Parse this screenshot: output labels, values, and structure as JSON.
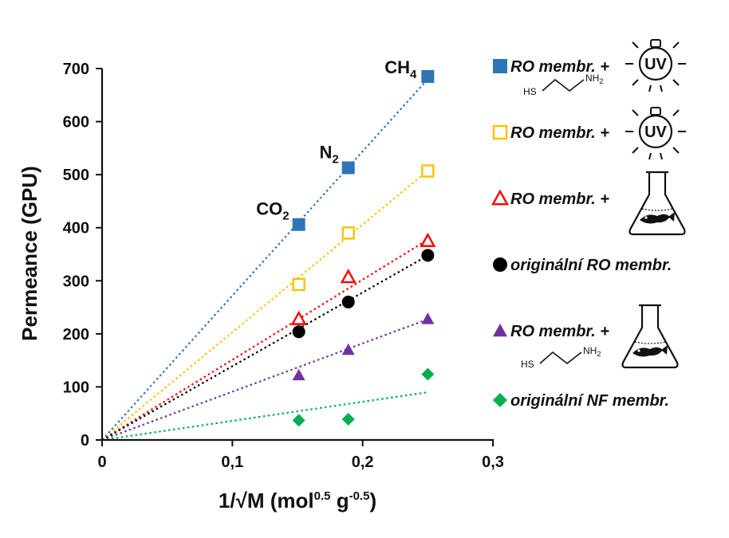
{
  "chart_data": {
    "type": "scatter",
    "xlabel": "1/√M (mol",
    "xlabel_sup1": "0.5",
    "xlabel_mid": " g",
    "xlabel_sup2": "-0.5",
    "xlabel_end": ")",
    "ylabel": "Permeance  (GPU)",
    "xlim": [
      0,
      0.3
    ],
    "ylim": [
      0,
      700
    ],
    "x_ticks": [
      0,
      0.1,
      0.2,
      0.3
    ],
    "x_tick_labels": [
      "0",
      "0,1",
      "0,2",
      "0,3"
    ],
    "y_ticks": [
      0,
      100,
      200,
      300,
      400,
      500,
      600,
      700
    ],
    "y_tick_labels": [
      "0",
      "100",
      "200",
      "300",
      "400",
      "500",
      "600",
      "700"
    ],
    "gas_labels": [
      {
        "main": "CO",
        "sub": "2",
        "x": 0.151
      },
      {
        "main": "N",
        "sub": "2",
        "x": 0.189
      },
      {
        "main": "CH",
        "sub": "4",
        "x": 0.25
      }
    ],
    "x": [
      0.151,
      0.189,
      0.25
    ],
    "series": [
      {
        "label": "RO membr. +",
        "extra": "thiol_uv",
        "marker": "square-filled",
        "color": "#2E75B6",
        "values": [
          406,
          513,
          685
        ],
        "fit_slope": 2720
      },
      {
        "label": "RO membr. +",
        "extra": "uv",
        "marker": "square-open",
        "color": "#FFC000",
        "values": [
          293,
          390,
          507
        ],
        "fit_slope": 2030
      },
      {
        "label": "RO membr. +",
        "extra": "flask",
        "marker": "triangle-open",
        "color": "#FF0000",
        "values": [
          228,
          307,
          375
        ],
        "fit_slope": 1510
      },
      {
        "label": "originální RO membr.",
        "extra": "",
        "marker": "circle-filled",
        "color": "#000000",
        "values": [
          204,
          260,
          348
        ],
        "fit_slope": 1390
      },
      {
        "label": "RO membr. +",
        "extra": "thiol_flask",
        "marker": "triangle-filled",
        "color": "#7030A0",
        "values": [
          122,
          170,
          228
        ],
        "fit_slope": 910
      },
      {
        "label": "originální NF membr.",
        "extra": "",
        "marker": "diamond-filled",
        "color": "#00B050",
        "values": [
          37,
          39,
          124
        ],
        "fit_slope": 360
      }
    ],
    "chem_labels": {
      "hs": "HS",
      "nh2": "NH",
      "nh2_sub": "2"
    },
    "uv_label": "UV",
    "legend_position": "right",
    "grid": false
  }
}
